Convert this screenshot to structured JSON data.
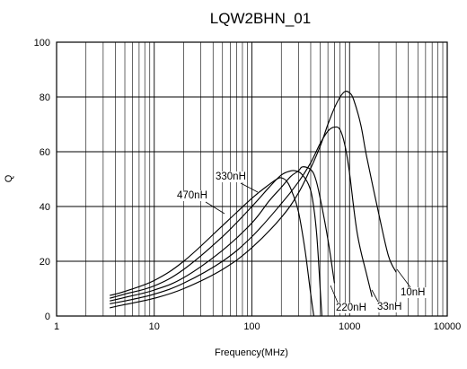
{
  "chart_data": {
    "type": "line",
    "title": "LQW2BHN_01",
    "xlabel": "Frequency(MHz)",
    "ylabel": "Q",
    "x_scale": "log",
    "xlim": [
      1,
      10000
    ],
    "ylim": [
      0,
      100
    ],
    "x_ticks": [
      1,
      10,
      100,
      1000,
      10000
    ],
    "x_tick_labels": [
      "1",
      "10",
      "100",
      "1000",
      "10000"
    ],
    "y_ticks": [
      0,
      20,
      40,
      60,
      80,
      100
    ],
    "y_tick_labels": [
      "0",
      "20",
      "40",
      "60",
      "80",
      "100"
    ],
    "grid": true,
    "legend": "none (curves labeled directly)",
    "series": [
      {
        "name": "10nH",
        "label_anchor": [
          3000,
          9.5
        ],
        "points": [
          [
            3.5,
            3
          ],
          [
            5,
            4.2
          ],
          [
            10,
            6.5
          ],
          [
            20,
            10
          ],
          [
            50,
            17
          ],
          [
            100,
            25
          ],
          [
            200,
            36
          ],
          [
            300,
            45
          ],
          [
            400,
            54
          ],
          [
            500,
            62
          ],
          [
            600,
            70
          ],
          [
            700,
            76
          ],
          [
            800,
            80
          ],
          [
            900,
            82
          ],
          [
            1000,
            81.5
          ],
          [
            1100,
            79
          ],
          [
            1300,
            70
          ],
          [
            1500,
            58
          ],
          [
            2000,
            37
          ],
          [
            2500,
            22
          ],
          [
            3000,
            16
          ]
        ]
      },
      {
        "name": "33nH",
        "label_anchor": [
          1700,
          4
        ],
        "points": [
          [
            3.5,
            4.5
          ],
          [
            5,
            5.5
          ],
          [
            10,
            8
          ],
          [
            20,
            12
          ],
          [
            50,
            20
          ],
          [
            100,
            29
          ],
          [
            200,
            41
          ],
          [
            300,
            49
          ],
          [
            400,
            56
          ],
          [
            500,
            63
          ],
          [
            600,
            67.5
          ],
          [
            700,
            69
          ],
          [
            800,
            68
          ],
          [
            900,
            62
          ],
          [
            1000,
            52
          ],
          [
            1200,
            30
          ],
          [
            1500,
            15
          ],
          [
            1700,
            7
          ]
        ]
      },
      {
        "name": "220nH",
        "label_anchor": [
          640,
          3
        ],
        "points": [
          [
            3.5,
            5.5
          ],
          [
            5,
            6.8
          ],
          [
            10,
            9.5
          ],
          [
            20,
            14
          ],
          [
            50,
            24
          ],
          [
            100,
            34
          ],
          [
            150,
            42
          ],
          [
            200,
            47
          ],
          [
            250,
            51
          ],
          [
            300,
            53
          ],
          [
            330,
            54.5
          ],
          [
            400,
            53.5
          ],
          [
            450,
            50
          ],
          [
            500,
            43
          ],
          [
            600,
            28
          ],
          [
            700,
            12
          ]
        ]
      },
      {
        "name": "330nH",
        "label_anchor": [
          160,
          51.5
        ],
        "points": [
          [
            3.5,
            6.5
          ],
          [
            5,
            8
          ],
          [
            10,
            11
          ],
          [
            20,
            17
          ],
          [
            50,
            29
          ],
          [
            100,
            40
          ],
          [
            150,
            47
          ],
          [
            200,
            51.5
          ],
          [
            250,
            53
          ],
          [
            280,
            53
          ],
          [
            320,
            52
          ],
          [
            380,
            48
          ],
          [
            420,
            42
          ],
          [
            460,
            30
          ],
          [
            500,
            10
          ],
          [
            520,
            0
          ]
        ]
      },
      {
        "name": "470nH",
        "label_anchor": [
          90,
          41
        ],
        "points": [
          [
            3.5,
            7.5
          ],
          [
            5,
            9
          ],
          [
            10,
            13
          ],
          [
            20,
            20
          ],
          [
            50,
            33
          ],
          [
            100,
            43
          ],
          [
            150,
            48
          ],
          [
            180,
            50
          ],
          [
            200,
            50.5
          ],
          [
            230,
            49
          ],
          [
            260,
            45
          ],
          [
            300,
            38
          ],
          [
            350,
            24
          ],
          [
            400,
            8
          ],
          [
            430,
            0
          ]
        ]
      }
    ]
  }
}
